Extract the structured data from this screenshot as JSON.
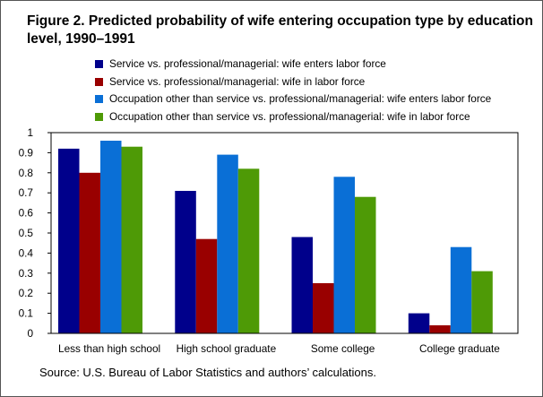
{
  "chart_data": {
    "type": "bar",
    "title": "Figure 2. Predicted probability of wife entering  occupation type by education level, 1990–1991",
    "categories": [
      "Less than high school",
      "High school graduate",
      "Some college",
      "College graduate"
    ],
    "series": [
      {
        "name": "Service vs. professional/managerial: wife enters labor force",
        "color": "#00008B",
        "values": [
          0.92,
          0.71,
          0.48,
          0.1
        ]
      },
      {
        "name": "Service vs. professional/managerial: wife in labor force",
        "color": "#990000",
        "values": [
          0.8,
          0.47,
          0.25,
          0.04
        ]
      },
      {
        "name": "Occupation other than service vs. professional/managerial: wife enters labor force",
        "color": "#0A6FD6",
        "values": [
          0.96,
          0.89,
          0.78,
          0.43
        ]
      },
      {
        "name": "Occupation other than service vs. professional/managerial: wife in labor force",
        "color": "#4E9A06",
        "values": [
          0.93,
          0.82,
          0.68,
          0.31
        ]
      }
    ],
    "ylim": [
      0,
      1
    ],
    "yticks": [
      "0",
      "0.1",
      "0.2",
      "0.3",
      "0.4",
      "0.5",
      "0.6",
      "0.7",
      "0.8",
      "0.9",
      "1"
    ],
    "xlabel": "",
    "ylabel": "",
    "grid": false,
    "legend_position": "top"
  },
  "source": "Source: U.S. Bureau of Labor Statistics and authors’ calculations."
}
